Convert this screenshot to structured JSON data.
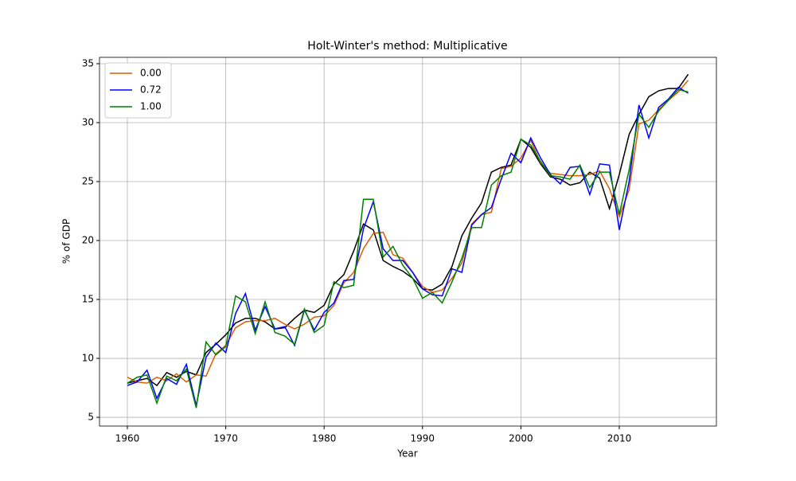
{
  "chart_data": {
    "type": "line",
    "title": "Holt-Winter's method: Multiplicative",
    "xlabel": "Year",
    "ylabel": "% of GDP",
    "x": [
      1960,
      1961,
      1962,
      1963,
      1964,
      1965,
      1966,
      1967,
      1968,
      1969,
      1970,
      1971,
      1972,
      1973,
      1974,
      1975,
      1976,
      1977,
      1978,
      1979,
      1980,
      1981,
      1982,
      1983,
      1984,
      1985,
      1986,
      1987,
      1988,
      1989,
      1990,
      1991,
      1992,
      1993,
      1994,
      1995,
      1996,
      1997,
      1998,
      1999,
      2000,
      2001,
      2002,
      2003,
      2004,
      2005,
      2006,
      2007,
      2008,
      2009,
      2010,
      2011,
      2012,
      2013,
      2014,
      2015,
      2016,
      2017
    ],
    "series": [
      {
        "color": "#000000",
        "values": [
          7.9,
          8.1,
          8.3,
          7.7,
          8.8,
          8.4,
          8.9,
          8.6,
          10.5,
          11.2,
          12.0,
          13.0,
          13.4,
          13.4,
          13.1,
          12.5,
          12.6,
          13.4,
          14.1,
          13.9,
          14.5,
          16.3,
          17.1,
          19.1,
          21.4,
          20.9,
          18.3,
          17.8,
          17.4,
          16.8,
          15.9,
          15.8,
          16.3,
          17.8,
          20.4,
          21.9,
          23.2,
          25.8,
          26.2,
          26.4,
          28.6,
          27.9,
          26.5,
          25.4,
          25.2,
          24.7,
          24.9,
          25.8,
          25.3,
          22.7,
          25.6,
          29.0,
          30.7,
          32.2,
          32.7,
          32.9,
          32.9,
          34.1
        ]
      },
      {
        "name": "0.00",
        "color": "#d95f02",
        "values": [
          8.4,
          8.0,
          7.9,
          8.4,
          8.1,
          8.7,
          8.0,
          8.6,
          8.5,
          10.4,
          11.1,
          12.6,
          13.1,
          13.2,
          13.2,
          13.4,
          12.9,
          12.5,
          12.9,
          13.5,
          13.6,
          14.5,
          16.4,
          17.3,
          19.3,
          20.6,
          20.7,
          18.8,
          18.5,
          17.3,
          16.1,
          15.6,
          15.8,
          16.8,
          18.1,
          21.4,
          22.2,
          22.4,
          26.1,
          26.3,
          27.0,
          28.5,
          26.6,
          25.7,
          25.6,
          25.5,
          25.5,
          25.6,
          25.9,
          24.4,
          22.0,
          24.3,
          29.9,
          30.2,
          31.1,
          31.9,
          32.6,
          33.6
        ]
      },
      {
        "name": "0.72",
        "color": "#0000ff",
        "values": [
          7.7,
          8.0,
          9.0,
          6.6,
          8.3,
          7.8,
          9.5,
          6.0,
          10.1,
          11.3,
          10.5,
          13.8,
          15.5,
          12.4,
          14.4,
          12.5,
          12.7,
          11.1,
          14.1,
          12.4,
          13.9,
          14.7,
          16.6,
          16.7,
          21.0,
          23.3,
          19.3,
          18.3,
          18.3,
          17.3,
          15.9,
          15.4,
          15.3,
          17.6,
          17.3,
          21.3,
          22.2,
          22.8,
          25.2,
          27.4,
          26.6,
          28.7,
          27.0,
          25.6,
          24.8,
          26.2,
          26.3,
          23.9,
          26.5,
          26.4,
          20.9,
          25.0,
          31.5,
          28.7,
          31.3,
          32.0,
          33.0,
          32.5
        ]
      },
      {
        "name": "1.00",
        "color": "#008000",
        "values": [
          7.9,
          8.4,
          8.6,
          6.2,
          8.5,
          8.1,
          9.1,
          5.8,
          11.4,
          10.3,
          11.0,
          15.3,
          14.8,
          12.1,
          14.8,
          12.2,
          11.9,
          11.2,
          14.2,
          12.2,
          12.8,
          16.5,
          16.0,
          16.2,
          23.5,
          23.5,
          18.6,
          19.5,
          17.9,
          16.8,
          15.1,
          15.6,
          14.7,
          16.5,
          18.5,
          21.1,
          21.1,
          24.7,
          25.5,
          25.8,
          28.6,
          28.1,
          26.7,
          25.5,
          25.4,
          25.2,
          26.4,
          24.5,
          25.8,
          25.8,
          22.2,
          26.0,
          30.7,
          29.6,
          31.0,
          31.9,
          32.8,
          32.6
        ]
      }
    ],
    "xlim": [
      1957.17,
      2019.87
    ],
    "xticks": [
      1960,
      1970,
      1980,
      1990,
      2000,
      2010
    ],
    "ylim": [
      4.26,
      35.54
    ],
    "yticks": [
      5,
      10,
      15,
      20,
      25,
      30,
      35
    ],
    "grid": true,
    "legend": "upper left"
  }
}
